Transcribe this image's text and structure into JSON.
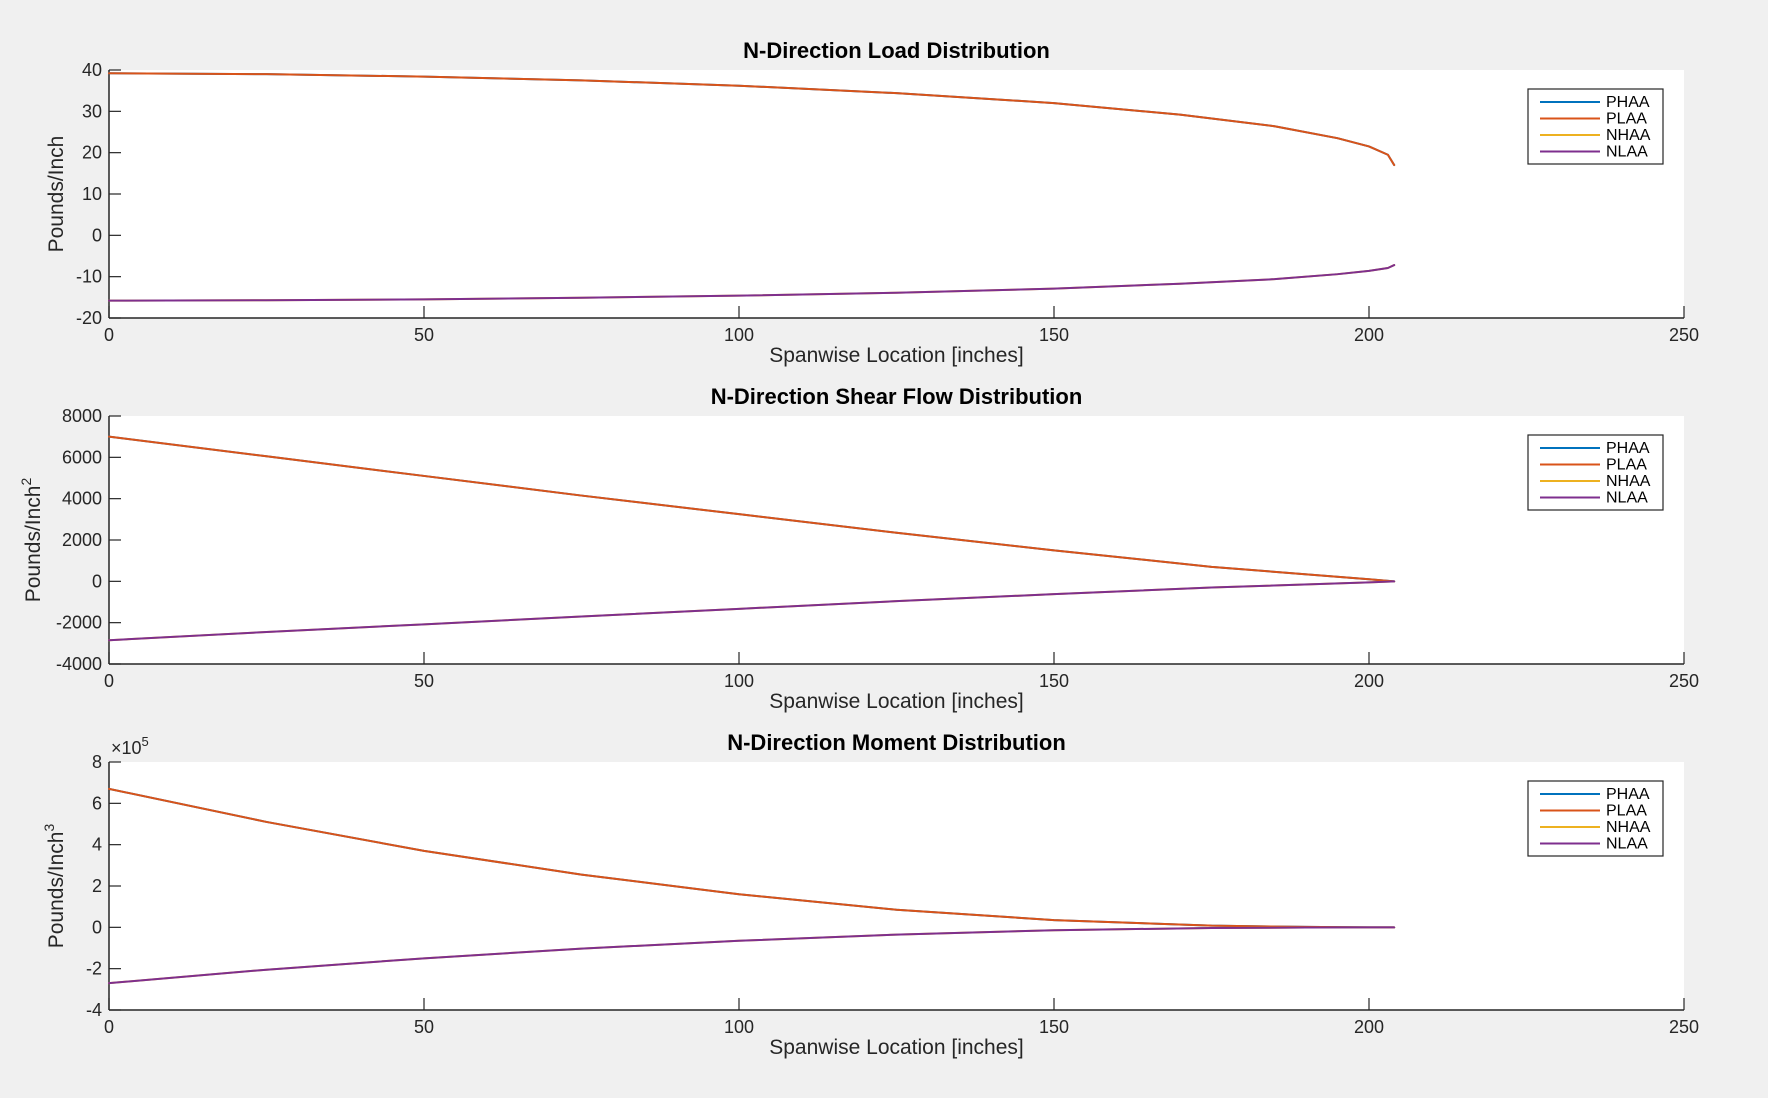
{
  "figure": {
    "background": "#f0f0f0"
  },
  "colors": {
    "PHAA": "#0072bd",
    "PLAA": "#d95319",
    "NHAA": "#edb120",
    "NLAA": "#7e2f8e"
  },
  "chart_data": [
    {
      "type": "line",
      "title": "N-Direction Load Distribution",
      "xlabel": "Spanwise Location [inches]",
      "ylabel": "Pounds/Inch",
      "ylabel_superscript": "",
      "exponent_label": "",
      "xlim": [
        0,
        250
      ],
      "ylim": [
        -20,
        40
      ],
      "xticks": [
        0,
        50,
        100,
        150,
        200,
        250
      ],
      "yticks": [
        -20,
        -10,
        0,
        10,
        20,
        30,
        40
      ],
      "legend_position": "top-right",
      "grid": false,
      "series": [
        {
          "name": "PHAA",
          "x": [
            0,
            25,
            50,
            75,
            100,
            125,
            150,
            170,
            185,
            195,
            200,
            203,
            204
          ],
          "y": [
            39.2,
            39.0,
            38.4,
            37.5,
            36.2,
            34.4,
            32.0,
            29.2,
            26.4,
            23.5,
            21.5,
            19.5,
            17.0
          ]
        },
        {
          "name": "PLAA",
          "x": [
            0,
            25,
            50,
            75,
            100,
            125,
            150,
            170,
            185,
            195,
            200,
            203,
            204
          ],
          "y": [
            39.2,
            39.0,
            38.4,
            37.5,
            36.2,
            34.4,
            32.0,
            29.2,
            26.4,
            23.5,
            21.5,
            19.5,
            17.0
          ]
        },
        {
          "name": "NHAA",
          "x": [
            0,
            25,
            50,
            75,
            100,
            125,
            150,
            170,
            185,
            195,
            200,
            203,
            204
          ],
          "y": [
            -15.8,
            -15.7,
            -15.5,
            -15.1,
            -14.6,
            -13.9,
            -12.9,
            -11.7,
            -10.6,
            -9.4,
            -8.6,
            -7.9,
            -7.2
          ]
        },
        {
          "name": "NLAA",
          "x": [
            0,
            25,
            50,
            75,
            100,
            125,
            150,
            170,
            185,
            195,
            200,
            203,
            204
          ],
          "y": [
            -15.8,
            -15.7,
            -15.5,
            -15.1,
            -14.6,
            -13.9,
            -12.9,
            -11.7,
            -10.6,
            -9.4,
            -8.6,
            -7.9,
            -7.2
          ]
        }
      ]
    },
    {
      "type": "line",
      "title": "N-Direction Shear Flow Distribution",
      "xlabel": "Spanwise Location [inches]",
      "ylabel": "Pounds/Inch",
      "ylabel_superscript": "2",
      "exponent_label": "",
      "xlim": [
        0,
        250
      ],
      "ylim": [
        -4000,
        8000
      ],
      "xticks": [
        0,
        50,
        100,
        150,
        200,
        250
      ],
      "yticks": [
        -4000,
        -2000,
        0,
        2000,
        4000,
        6000,
        8000
      ],
      "legend_position": "top-right",
      "grid": false,
      "series": [
        {
          "name": "PHAA",
          "x": [
            0,
            25,
            50,
            75,
            100,
            125,
            150,
            175,
            200,
            204
          ],
          "y": [
            7000,
            6050,
            5100,
            4150,
            3250,
            2350,
            1500,
            700,
            100,
            0
          ]
        },
        {
          "name": "PLAA",
          "x": [
            0,
            25,
            50,
            75,
            100,
            125,
            150,
            175,
            200,
            204
          ],
          "y": [
            7000,
            6050,
            5100,
            4150,
            3250,
            2350,
            1500,
            700,
            100,
            0
          ]
        },
        {
          "name": "NHAA",
          "x": [
            0,
            25,
            50,
            75,
            100,
            125,
            150,
            175,
            200,
            204
          ],
          "y": [
            -2850,
            -2450,
            -2080,
            -1700,
            -1330,
            -960,
            -620,
            -300,
            -50,
            0
          ]
        },
        {
          "name": "NLAA",
          "x": [
            0,
            25,
            50,
            75,
            100,
            125,
            150,
            175,
            200,
            204
          ],
          "y": [
            -2850,
            -2450,
            -2080,
            -1700,
            -1330,
            -960,
            -620,
            -300,
            -50,
            0
          ]
        }
      ]
    },
    {
      "type": "line",
      "title": "N-Direction Moment Distribution",
      "xlabel": "Spanwise Location [inches]",
      "ylabel": "Pounds/Inch",
      "ylabel_superscript": "3",
      "exponent_label": "×10",
      "exponent_power": "5",
      "xlim": [
        0,
        250
      ],
      "ylim": [
        -4,
        8
      ],
      "xticks": [
        0,
        50,
        100,
        150,
        200,
        250
      ],
      "yticks": [
        -4,
        -2,
        0,
        2,
        4,
        6,
        8
      ],
      "legend_position": "top-right",
      "grid": false,
      "series": [
        {
          "name": "PHAA",
          "x": [
            0,
            25,
            50,
            75,
            100,
            125,
            150,
            175,
            190,
            200,
            204
          ],
          "y": [
            6.7,
            5.1,
            3.7,
            2.55,
            1.6,
            0.85,
            0.35,
            0.08,
            0.02,
            0.0,
            0.0
          ]
        },
        {
          "name": "PLAA",
          "x": [
            0,
            25,
            50,
            75,
            100,
            125,
            150,
            175,
            190,
            200,
            204
          ],
          "y": [
            6.7,
            5.1,
            3.7,
            2.55,
            1.6,
            0.85,
            0.35,
            0.08,
            0.02,
            0.0,
            0.0
          ]
        },
        {
          "name": "NHAA",
          "x": [
            0,
            25,
            50,
            75,
            100,
            125,
            150,
            175,
            190,
            200,
            204
          ],
          "y": [
            -2.7,
            -2.05,
            -1.5,
            -1.03,
            -0.65,
            -0.35,
            -0.14,
            -0.03,
            -0.01,
            0.0,
            0.0
          ]
        },
        {
          "name": "NLAA",
          "x": [
            0,
            25,
            50,
            75,
            100,
            125,
            150,
            175,
            190,
            200,
            204
          ],
          "y": [
            -2.7,
            -2.05,
            -1.5,
            -1.03,
            -0.65,
            -0.35,
            -0.14,
            -0.03,
            -0.01,
            0.0,
            0.0
          ]
        }
      ]
    }
  ]
}
